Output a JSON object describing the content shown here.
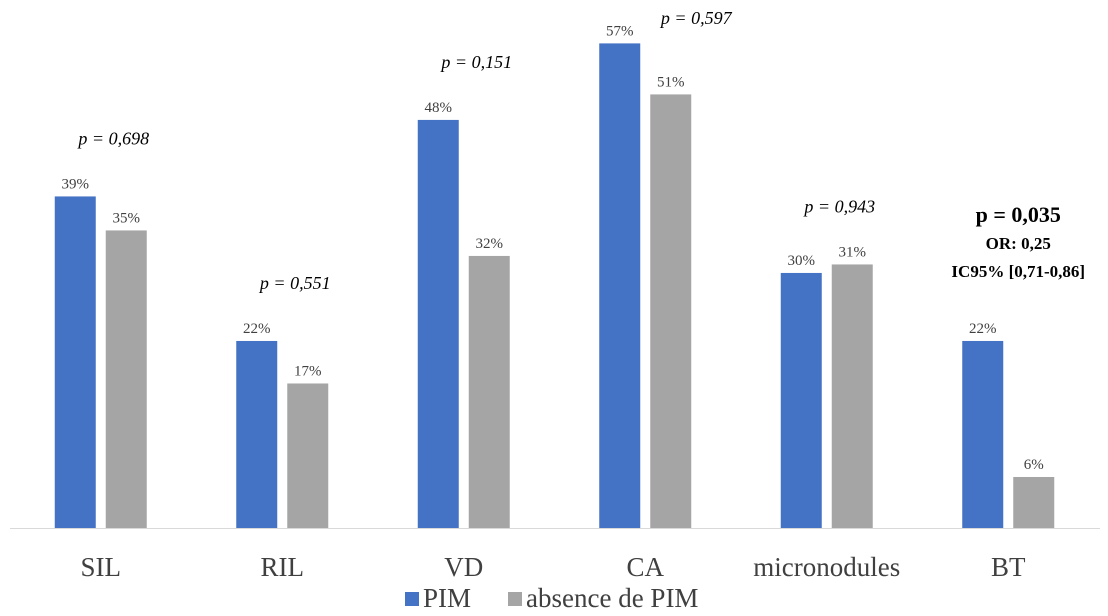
{
  "chart_data": {
    "type": "bar",
    "categories": [
      "SIL",
      "RIL",
      "VD",
      "CA",
      "micronodules",
      "BT"
    ],
    "series": [
      {
        "name": "PIM",
        "values": [
          39,
          22,
          48,
          57,
          30,
          22
        ],
        "labels": [
          "39%",
          "22%",
          "48%",
          "57%",
          "30%",
          "22%"
        ]
      },
      {
        "name": "absence de PIM",
        "values": [
          35,
          17,
          32,
          51,
          31,
          6
        ],
        "labels": [
          "35%",
          "17%",
          "32%",
          "51%",
          "31%",
          "6%"
        ]
      }
    ],
    "annotations": [
      {
        "category": "SIL",
        "text": "p = 0,698"
      },
      {
        "category": "RIL",
        "text": "p = 0,551"
      },
      {
        "category": "VD",
        "text": "p = 0,151"
      },
      {
        "category": "CA",
        "text": "p = 0,597"
      },
      {
        "category": "micronodules",
        "text": "p = 0,943"
      },
      {
        "category": "BT",
        "text": "p = 0,035",
        "lines": [
          "OR: 0,25",
          "IC95%  [0,71-0,86]"
        ],
        "bold": true
      }
    ],
    "colors": {
      "PIM": "#4472C4",
      "absence de PIM": "#A5A5A5"
    },
    "ylim": [
      0,
      62
    ],
    "grid": false,
    "legend": "bottom-center",
    "title": "",
    "xlabel": "",
    "ylabel": ""
  }
}
